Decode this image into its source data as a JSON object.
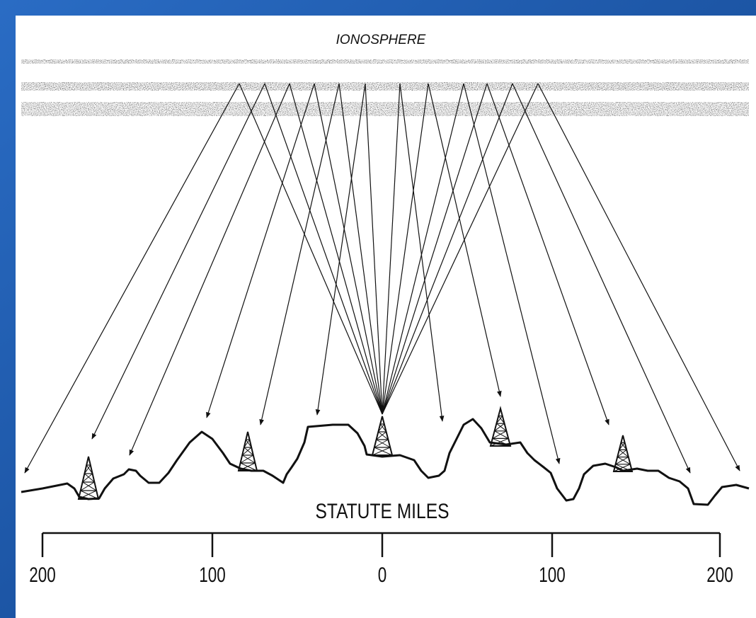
{
  "title": "IONOSPHERE",
  "scale": {
    "title": "STATUTE MILES",
    "ticks": [
      "200",
      "100",
      "0",
      "100",
      "200"
    ]
  }
}
